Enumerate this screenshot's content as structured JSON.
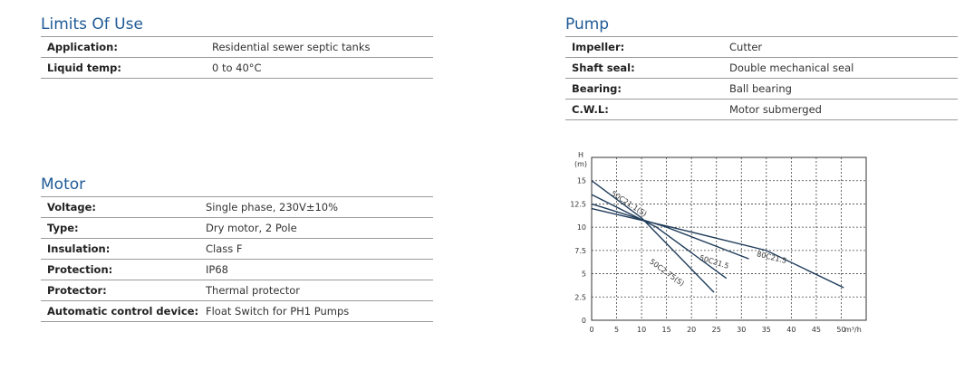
{
  "limits": {
    "title": "Limits Of Use",
    "rows": [
      {
        "label": "Application:",
        "value": "Residential sewer septic tanks"
      },
      {
        "label": "Liquid temp:",
        "value": "0 to 40°C"
      }
    ]
  },
  "motor": {
    "title": "Motor",
    "rows": [
      {
        "label": "Voltage:",
        "value": "Single phase, 230V±10%"
      },
      {
        "label": "Type:",
        "value": "Dry motor, 2 Pole"
      },
      {
        "label": "Insulation:",
        "value": "Class F"
      },
      {
        "label": "Protection:",
        "value": "IP68"
      },
      {
        "label": "Protector:",
        "value": "Thermal protector"
      },
      {
        "label": "Automatic control device:",
        "value": "Float Switch for PH1 Pumps"
      }
    ]
  },
  "pump": {
    "title": "Pump",
    "rows": [
      {
        "label": "Impeller:",
        "value": "Cutter"
      },
      {
        "label": "Shaft seal:",
        "value": "Double mechanical seal"
      },
      {
        "label": "Bearing:",
        "value": "Ball bearing"
      },
      {
        "label": "C.W.L:",
        "value": "Motor submerged"
      }
    ]
  },
  "chart_data": {
    "type": "line",
    "ylabel_line1": "H",
    "ylabel_line2": "(m)",
    "xlabel": "m³/h",
    "xlim": [
      0,
      55
    ],
    "ylim": [
      0,
      17.5
    ],
    "xticks": [
      0,
      5,
      10,
      15,
      20,
      25,
      30,
      35,
      40,
      45,
      50
    ],
    "yticks": [
      0,
      2.5,
      5,
      7.5,
      10,
      12.5,
      15
    ],
    "ytick_labels": [
      "0",
      "2.5",
      "5",
      "7.5",
      "10",
      "12.5",
      "15"
    ],
    "grid": true,
    "line_color": "#1f3c5a",
    "series": [
      {
        "name": "50C21.1(S)",
        "x": [
          0,
          10,
          24.5
        ],
        "y": [
          15,
          11,
          3
        ],
        "label_x": 3.8,
        "label_y": 13.5,
        "label_angle": 33
      },
      {
        "name": "50C2.75(S)",
        "x": [
          0,
          13,
          27
        ],
        "y": [
          13.5,
          10,
          4.5
        ],
        "label_x": 11.5,
        "label_y": 6.2,
        "label_angle": 36
      },
      {
        "name": "50C21.5",
        "x": [
          0,
          15,
          31.5
        ],
        "y": [
          12.5,
          10,
          6.6
        ],
        "label_x": 21.5,
        "label_y": 6.5,
        "label_angle": 17
      },
      {
        "name": "80C21.5",
        "x": [
          0,
          16,
          35,
          50.5
        ],
        "y": [
          12,
          10,
          7.5,
          3.5
        ],
        "label_x": 33,
        "label_y": 6.9,
        "label_angle": 14
      }
    ]
  }
}
